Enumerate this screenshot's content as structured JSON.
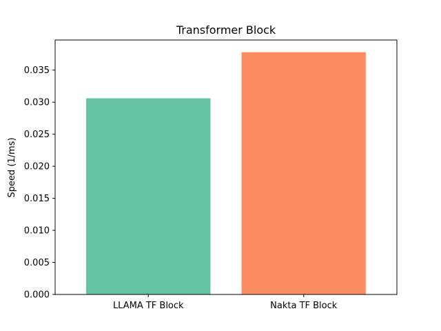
{
  "chart_data": {
    "type": "bar",
    "title": "Transformer Block",
    "xlabel": "",
    "ylabel": "Speed (1/ms)",
    "categories": [
      "LLAMA TF Block",
      "Nakta TF Block"
    ],
    "values": [
      0.0306,
      0.0378
    ],
    "colors": [
      "#66c2a5",
      "#fc8d62"
    ],
    "ylim": [
      0,
      0.0397
    ],
    "yticks": [
      0.0,
      0.005,
      0.01,
      0.015,
      0.02,
      0.025,
      0.03,
      0.035
    ],
    "ytick_labels": [
      "0.000",
      "0.005",
      "0.010",
      "0.015",
      "0.020",
      "0.025",
      "0.030",
      "0.035"
    ],
    "grid": false,
    "legend": "none"
  }
}
